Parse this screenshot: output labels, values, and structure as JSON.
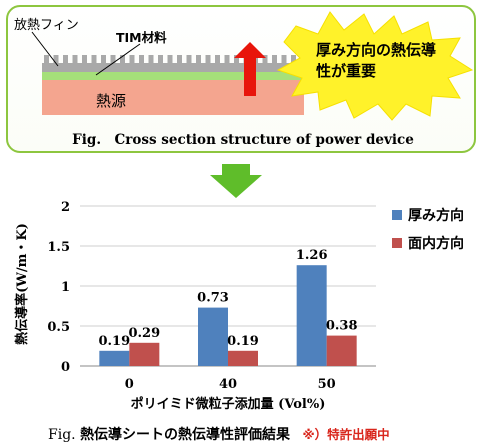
{
  "diagram": {
    "fin_label": "放熱フィン",
    "tim_label": "TIM材料",
    "heat_source_label": "熱源",
    "callout": "厚み方向の熱伝導性が重要",
    "caption": "Fig.　Cross section structure of power device",
    "colors": {
      "fin": "#9a9a9a",
      "tim": "#a5e07a",
      "source": "#f4a58f",
      "arrow": "#e8150b",
      "burst": "#fff22a",
      "down_arrow": "#5fbd2a"
    }
  },
  "chart_data": {
    "type": "bar",
    "categories": [
      "0",
      "40",
      "50"
    ],
    "series": [
      {
        "name": "厚み方向",
        "values": [
          0.19,
          0.73,
          1.26
        ],
        "color": "#4f81bd"
      },
      {
        "name": "面内方向",
        "values": [
          0.29,
          0.19,
          0.38
        ],
        "color": "#c0504d"
      }
    ],
    "data_labels": [
      [
        "0.19",
        "0.73",
        "1.26"
      ],
      [
        "0.29",
        "0.19",
        "0.38"
      ]
    ],
    "ylabel": "熱伝導率(W/m・K)",
    "xlabel": "ポリイミド微粒子添加量 (Vol%)",
    "ylim": [
      0,
      2
    ],
    "yticks": [
      "0",
      "0.5",
      "1",
      "1.5",
      "2"
    ],
    "grid": true,
    "legend": "right"
  },
  "caption2": {
    "fig": "Fig.",
    "text": "熱伝導シートの熱伝導性評価結果",
    "note": "※）特許出願中"
  }
}
